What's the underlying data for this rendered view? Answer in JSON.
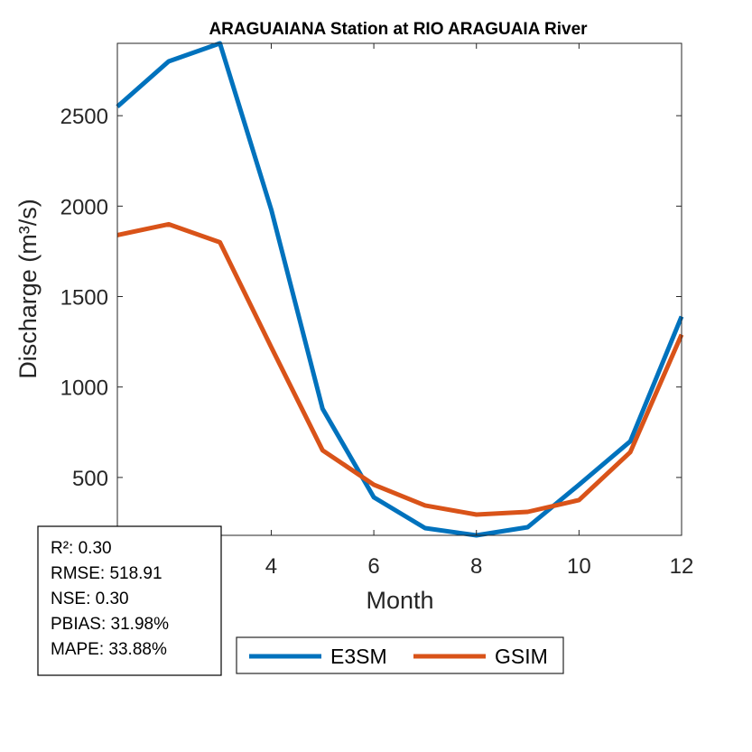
{
  "chart_data": {
    "type": "line",
    "title": "ARAGUAIANA  Station at  RIO ARAGUAIA  River",
    "xlabel": "Month",
    "ylabel": "Discharge (m³/s)",
    "xlim": [
      1,
      12
    ],
    "ylim": [
      180,
      2900
    ],
    "xticks": [
      4,
      6,
      8,
      10,
      12
    ],
    "yticks": [
      500,
      1000,
      1500,
      2000,
      2500
    ],
    "x": [
      1,
      2,
      3,
      4,
      5,
      6,
      7,
      8,
      9,
      10,
      11,
      12
    ],
    "series": [
      {
        "name": "E3SM",
        "color": "#0072BD",
        "values": [
          2550,
          2800,
          2900,
          1980,
          880,
          390,
          220,
          180,
          225,
          460,
          700,
          1390
        ]
      },
      {
        "name": "GSIM",
        "color": "#D95319",
        "values": [
          1840,
          1900,
          1800,
          1220,
          650,
          460,
          345,
          295,
          310,
          375,
          640,
          1290
        ]
      }
    ],
    "legend_position": "bottom",
    "grid": false
  },
  "stats": {
    "lines": [
      "R²: 0.30",
      "RMSE: 518.91",
      "NSE: 0.30",
      "PBIAS: 31.98%",
      "MAPE: 33.88%"
    ]
  }
}
